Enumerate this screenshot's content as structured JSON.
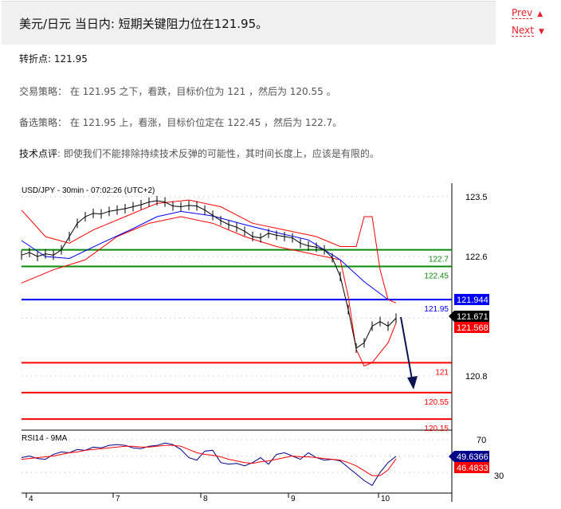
{
  "header": {
    "title": "美元/日元 当日内: 短期关键阻力位在121.95。",
    "prev_label": "Prev",
    "next_label": "Next",
    "prev_icon": "triangle-up-icon",
    "next_icon": "triangle-down-icon",
    "accent": "#e8202a"
  },
  "article": {
    "pivot_label": "转折点",
    "pivot_value": ": 121.95",
    "strategy": "交易策略：  在 121.95 之下，看跌，目标价位为 121 ，然后为 120.55 。",
    "alternative": "备选策略：  在 121.95 上，看涨，目标价位定在 122.45 ，然后为 122.7。",
    "comment_label": "技术点评",
    "comment": ": 即使我们不能排除持续技术反弹的可能性，其时间长度上，应该是有限的。"
  },
  "chart": {
    "title": "USD/JPY - 30min - 07:02:26 (UTC+2)",
    "price_ticks": [
      "123.5",
      "122.6",
      "120.8"
    ],
    "x_ticks": [
      "4",
      "7",
      "8",
      "9",
      "10"
    ],
    "levels": [
      {
        "value": 122.7,
        "label": "122.7",
        "color": "#0a8a0a"
      },
      {
        "value": 122.45,
        "label": "122.45",
        "color": "#0a8a0a"
      },
      {
        "value": 121.95,
        "label": "121.95",
        "color": "#0000ff"
      },
      {
        "value": 121,
        "label": "121",
        "color": "#ff0000"
      },
      {
        "value": 120.55,
        "label": "120.55",
        "color": "#ff0000"
      },
      {
        "value": 120.15,
        "label": "120.15",
        "color": "#ff0000"
      }
    ],
    "badges": {
      "ma": "121.944",
      "last": "121.671",
      "lower": "121.568"
    },
    "close": [
      122.62,
      122.66,
      122.6,
      122.64,
      122.62,
      122.7,
      122.9,
      123.1,
      123.2,
      123.25,
      123.24,
      123.28,
      123.3,
      123.32,
      123.35,
      123.38,
      123.42,
      123.44,
      123.42,
      123.36,
      123.35,
      123.37,
      123.36,
      123.3,
      123.22,
      123.14,
      123.08,
      123.04,
      122.98,
      122.9,
      122.88,
      122.95,
      122.92,
      122.9,
      122.88,
      122.8,
      122.76,
      122.74,
      122.7,
      122.58,
      122.3,
      121.8,
      121.22,
      121.3,
      121.55,
      121.62,
      121.55,
      121.67
    ],
    "ma": [
      [
        0,
        122.84
      ],
      [
        3,
        122.6
      ],
      [
        6,
        122.57
      ],
      [
        10,
        122.8
      ],
      [
        14,
        123.02
      ],
      [
        17,
        123.2
      ],
      [
        20,
        123.28
      ],
      [
        24,
        123.21
      ],
      [
        28,
        123.08
      ],
      [
        32,
        122.96
      ],
      [
        36,
        122.85
      ],
      [
        40,
        122.55
      ],
      [
        43,
        122.22
      ],
      [
        46,
        121.95
      ]
    ],
    "upper_band": [
      [
        0,
        123.3
      ],
      [
        3,
        122.9
      ],
      [
        6,
        122.8
      ],
      [
        9,
        123.0
      ],
      [
        13,
        123.2
      ],
      [
        17,
        123.4
      ],
      [
        21,
        123.45
      ],
      [
        25,
        123.35
      ],
      [
        29,
        123.1
      ],
      [
        33,
        123.0
      ],
      [
        37,
        122.9
      ],
      [
        40,
        122.75
      ],
      [
        42,
        122.75
      ],
      [
        43,
        123.2
      ],
      [
        44,
        123.2
      ],
      [
        45,
        122.4
      ],
      [
        46,
        121.95
      ],
      [
        47,
        121.9
      ]
    ],
    "lower_band": [
      [
        0,
        122.2
      ],
      [
        4,
        122.4
      ],
      [
        8,
        122.55
      ],
      [
        12,
        122.9
      ],
      [
        16,
        123.1
      ],
      [
        20,
        123.2
      ],
      [
        24,
        123.1
      ],
      [
        28,
        122.9
      ],
      [
        32,
        122.75
      ],
      [
        36,
        122.65
      ],
      [
        40,
        122.55
      ],
      [
        41,
        122.0
      ],
      [
        42,
        121.2
      ],
      [
        43,
        120.95
      ],
      [
        44,
        121.0
      ],
      [
        46,
        121.3
      ],
      [
        47,
        121.6
      ]
    ],
    "rsi": {
      "title": "RSI14 - 9MA",
      "ticks": [
        "70",
        "30"
      ],
      "value_badge": "49.6366",
      "ma_badge": "46.4833",
      "values": [
        48,
        50,
        47,
        46,
        52,
        55,
        54,
        58,
        57,
        61,
        60,
        63,
        64,
        63,
        60,
        59,
        62,
        63,
        66,
        64,
        58,
        48,
        45,
        56,
        57,
        42,
        40,
        41,
        38,
        42,
        48,
        40,
        52,
        54,
        50,
        46,
        54,
        48,
        45,
        46,
        44,
        36,
        28,
        20,
        14,
        30,
        42,
        49.6
      ],
      "ma": [
        46,
        47,
        48,
        49,
        50,
        52,
        54,
        55,
        57,
        58,
        59,
        60,
        61,
        62,
        62,
        61,
        61,
        62,
        63,
        63,
        62,
        58,
        54,
        52,
        51,
        49,
        46,
        44,
        42,
        41,
        43,
        44,
        46,
        48,
        50,
        49,
        49,
        48,
        47,
        46,
        45,
        42,
        38,
        32,
        26,
        26,
        33,
        46.5
      ]
    }
  }
}
